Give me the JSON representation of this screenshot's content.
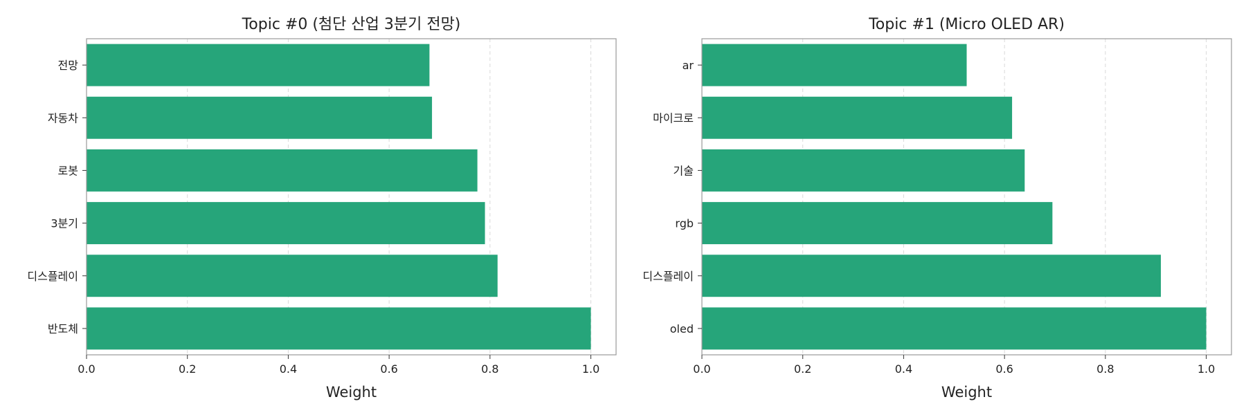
{
  "chart_data": [
    {
      "type": "bar",
      "orientation": "horizontal",
      "title": "Topic #0 (첨단 산업 3분기 전망)",
      "xlabel": "Weight",
      "ylabel": "",
      "categories": [
        "전망",
        "자동차",
        "로봇",
        "3분기",
        "디스플레이",
        "반도체"
      ],
      "values": [
        0.68,
        0.685,
        0.775,
        0.79,
        0.815,
        1.0
      ],
      "xlim": [
        0,
        1.05
      ],
      "xticks": [
        "0.0",
        "0.2",
        "0.4",
        "0.6",
        "0.8",
        "1.0"
      ],
      "grid": "vertical-dashed",
      "bar_color": "#26a57a"
    },
    {
      "type": "bar",
      "orientation": "horizontal",
      "title": "Topic #1 (Micro OLED AR)",
      "xlabel": "Weight",
      "ylabel": "",
      "categories": [
        "ar",
        "마이크로",
        "기술",
        "rgb",
        "디스플레이",
        "oled"
      ],
      "values": [
        0.525,
        0.615,
        0.64,
        0.695,
        0.91,
        1.0
      ],
      "xlim": [
        0,
        1.05
      ],
      "xticks": [
        "0.0",
        "0.2",
        "0.4",
        "0.6",
        "0.8",
        "1.0"
      ],
      "grid": "vertical-dashed",
      "bar_color": "#26a57a"
    }
  ]
}
